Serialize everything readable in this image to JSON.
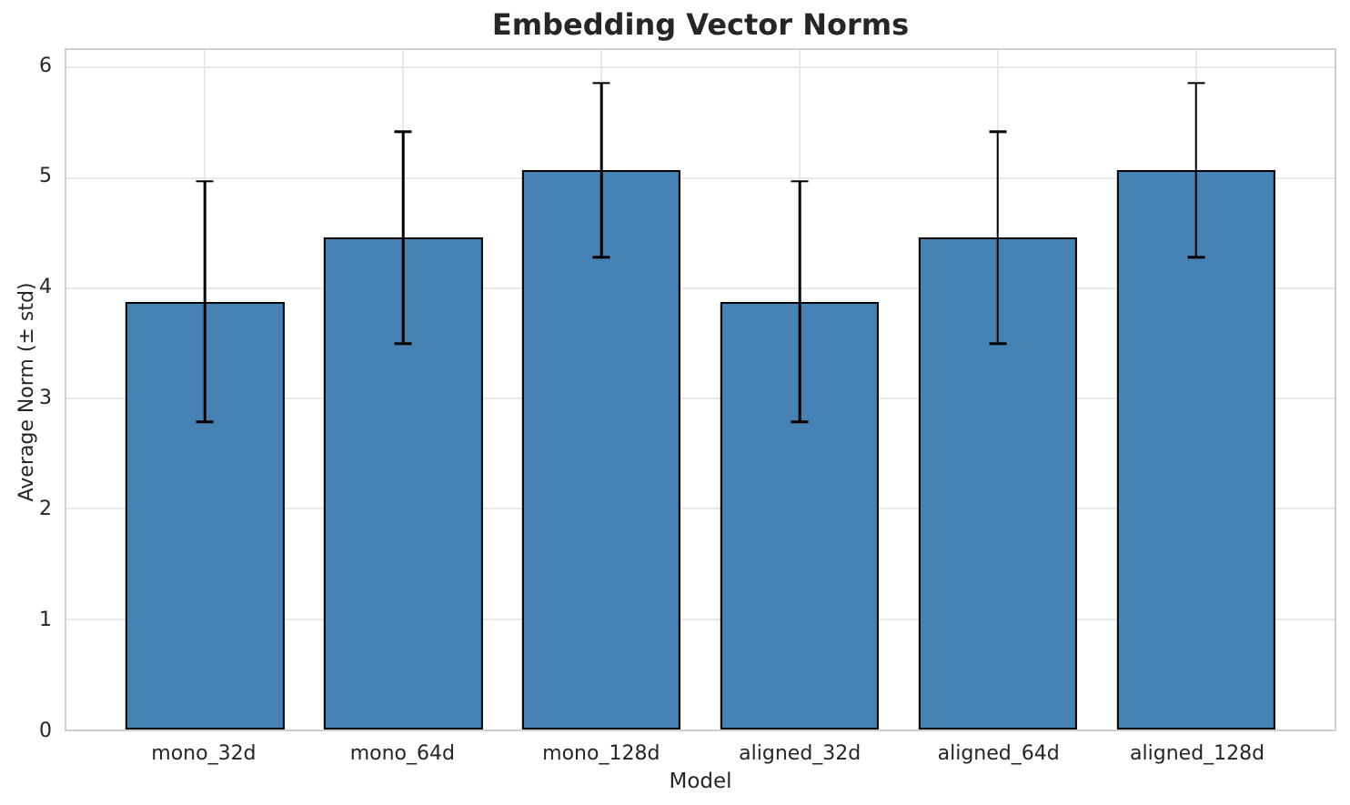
{
  "chart_data": {
    "type": "bar",
    "title": "Embedding Vector Norms",
    "xlabel": "Model",
    "ylabel": "Average Norm (± std)",
    "categories": [
      "mono_32d",
      "mono_64d",
      "mono_128d",
      "aligned_32d",
      "aligned_64d",
      "aligned_128d"
    ],
    "values": [
      3.88,
      4.46,
      5.07,
      3.88,
      4.46,
      5.07
    ],
    "errors": [
      1.09,
      0.96,
      0.79,
      1.09,
      0.96,
      0.79
    ],
    "error_style": "symmetric ± std with caps",
    "yticks": [
      0,
      1,
      2,
      3,
      4,
      5,
      6
    ],
    "ylim": [
      0,
      6.16
    ],
    "xlim": [
      -0.7,
      5.7
    ],
    "bar_width": 0.8,
    "grid": "horizontal lines at integer ticks and vertical lines at category centers",
    "legend": null,
    "colors": {
      "bar_fill": "#4682B4",
      "bar_edge": "#000000",
      "error": "#000000",
      "grid": "#e9e9e9",
      "spine": "#cfcfcf",
      "text": "#262626",
      "background": "#ffffff"
    }
  }
}
